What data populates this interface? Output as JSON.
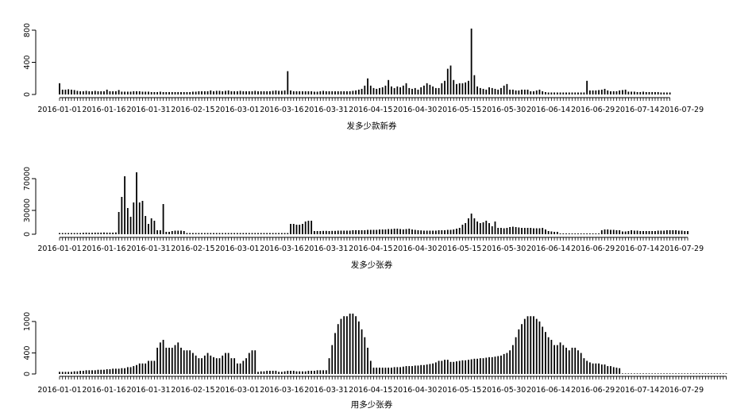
{
  "chart_data": [
    {
      "type": "bar",
      "xlabel": "发多少款新券",
      "ylabel": "",
      "ylim": [
        0,
        800
      ],
      "yticks": [
        0,
        400,
        800
      ],
      "grid": false,
      "x_tick_labels": [
        "2016-01-01",
        "2016-01-16",
        "2016-01-31",
        "2016-02-15",
        "2016-03-01",
        "2016-03-16",
        "2016-03-31",
        "2016-04-15",
        "2016-04-30",
        "2016-05-15",
        "2016-05-30",
        "2016-06-14",
        "2016-06-29",
        "2016-07-14",
        "2016-07-29"
      ],
      "x_start": "2016-01-01",
      "x_end": "2016-07-31",
      "values": [
        140,
        60,
        60,
        65,
        60,
        55,
        45,
        40,
        40,
        45,
        40,
        40,
        45,
        40,
        40,
        40,
        60,
        40,
        40,
        40,
        55,
        35,
        35,
        35,
        35,
        40,
        40,
        40,
        35,
        35,
        35,
        30,
        30,
        30,
        35,
        30,
        30,
        30,
        30,
        30,
        30,
        30,
        30,
        30,
        30,
        35,
        35,
        40,
        40,
        40,
        40,
        50,
        40,
        45,
        45,
        40,
        45,
        50,
        40,
        40,
        40,
        45,
        40,
        40,
        40,
        40,
        45,
        40,
        40,
        40,
        40,
        40,
        45,
        50,
        45,
        45,
        50,
        290,
        50,
        40,
        40,
        40,
        40,
        40,
        40,
        40,
        35,
        35,
        40,
        45,
        40,
        40,
        40,
        40,
        40,
        40,
        40,
        40,
        40,
        45,
        50,
        60,
        70,
        110,
        200,
        110,
        80,
        70,
        80,
        90,
        110,
        180,
        100,
        80,
        100,
        90,
        110,
        140,
        80,
        70,
        80,
        60,
        90,
        110,
        140,
        120,
        100,
        80,
        80,
        140,
        170,
        320,
        360,
        180,
        130,
        140,
        140,
        150,
        170,
        820,
        240,
        100,
        80,
        70,
        60,
        90,
        80,
        70,
        60,
        80,
        110,
        130,
        60,
        60,
        50,
        50,
        60,
        60,
        60,
        40,
        40,
        50,
        60,
        40,
        30,
        25,
        25,
        25,
        25,
        25,
        25,
        25,
        25,
        25,
        25,
        25,
        25,
        25,
        170,
        50,
        50,
        50,
        55,
        60,
        70,
        50,
        40,
        40,
        40,
        50,
        55,
        60,
        35,
        35,
        35,
        30,
        30,
        35,
        30,
        30,
        30,
        30,
        30,
        25,
        25,
        25,
        25
      ]
    },
    {
      "type": "bar",
      "xlabel": "发多少张券",
      "ylabel": "",
      "ylim": [
        0,
        80000
      ],
      "yticks": [
        0,
        30000,
        70000
      ],
      "grid": false,
      "x_tick_labels": [
        "2016-01-01",
        "2016-01-16",
        "2016-01-31",
        "2016-02-15",
        "2016-03-01",
        "2016-03-16",
        "2016-03-31",
        "2016-04-15",
        "2016-04-30",
        "2016-05-15",
        "2016-05-30",
        "2016-06-14",
        "2016-06-29",
        "2016-07-14",
        "2016-07-29"
      ],
      "x_start": "2016-01-01",
      "x_end": "2016-07-31",
      "values": [
        1500,
        1500,
        1500,
        1500,
        1500,
        1500,
        1500,
        1500,
        1800,
        2000,
        1800,
        1800,
        2000,
        2000,
        2000,
        2200,
        2000,
        2000,
        2000,
        2200,
        28000,
        47000,
        73000,
        33000,
        22000,
        40000,
        78000,
        40000,
        42000,
        23000,
        13000,
        20000,
        17000,
        5000,
        5000,
        38000,
        3000,
        3000,
        4000,
        4500,
        4500,
        4500,
        4000,
        1500,
        1500,
        1500,
        1500,
        1500,
        1500,
        1500,
        1500,
        1500,
        1500,
        1500,
        1500,
        1500,
        1500,
        1500,
        1500,
        1500,
        1500,
        1500,
        1500,
        1500,
        1500,
        1500,
        1500,
        1500,
        1500,
        1500,
        1500,
        1500,
        1500,
        1500,
        1500,
        1500,
        1500,
        1500,
        13000,
        13000,
        12000,
        12000,
        13000,
        16000,
        17000,
        17000,
        4000,
        4000,
        4000,
        4200,
        4200,
        4000,
        4200,
        4200,
        4500,
        4500,
        4500,
        4500,
        4500,
        5000,
        5000,
        5000,
        5000,
        5000,
        5500,
        5500,
        5500,
        5500,
        6000,
        6000,
        6000,
        6500,
        6500,
        7000,
        7000,
        6500,
        6000,
        6500,
        7000,
        6000,
        5500,
        5000,
        4800,
        4500,
        4500,
        4500,
        4500,
        4500,
        5000,
        5000,
        5000,
        5500,
        5500,
        6000,
        7000,
        8000,
        12000,
        14000,
        20000,
        26000,
        20000,
        16000,
        14000,
        15000,
        17000,
        14000,
        10000,
        16000,
        8000,
        8000,
        7500,
        8000,
        9000,
        9500,
        9000,
        8500,
        8000,
        8000,
        8000,
        8000,
        7500,
        7500,
        7500,
        8000,
        6000,
        4000,
        3500,
        3000,
        3000,
        1000,
        1000,
        1000,
        1000,
        1000,
        1000,
        1000,
        1000,
        1000,
        1000,
        1000,
        1000,
        1000,
        1000,
        5000,
        6000,
        6000,
        5500,
        5500,
        5000,
        5000,
        3500,
        3500,
        4000,
        5000,
        4500,
        4500,
        4000,
        4000,
        4000,
        4000,
        4000,
        4000,
        4500,
        4500,
        4500,
        5000,
        5000,
        5000,
        5000,
        4500,
        4500,
        4000,
        4000
      ]
    },
    {
      "type": "bar",
      "xlabel": "用多少张券",
      "ylabel": "",
      "ylim": [
        0,
        1150
      ],
      "yticks": [
        0,
        400,
        1000
      ],
      "grid": false,
      "x_tick_labels": [
        "2016-01-01",
        "2016-01-16",
        "2016-01-31",
        "2016-02-15",
        "2016-03-01",
        "2016-03-16",
        "2016-03-31",
        "2016-04-15",
        "2016-04-30",
        "2016-05-15",
        "2016-05-30",
        "2016-06-14",
        "2016-06-29",
        "2016-07-14",
        "2016-07-29"
      ],
      "x_start": "2016-01-01",
      "x_end": "2016-07-31",
      "values": [
        40,
        40,
        40,
        40,
        40,
        50,
        50,
        60,
        60,
        70,
        70,
        70,
        70,
        80,
        80,
        80,
        90,
        90,
        100,
        100,
        100,
        110,
        110,
        130,
        130,
        150,
        170,
        200,
        200,
        200,
        250,
        250,
        250,
        500,
        600,
        650,
        500,
        500,
        500,
        550,
        600,
        500,
        450,
        450,
        450,
        400,
        350,
        300,
        300,
        350,
        400,
        350,
        320,
        300,
        300,
        350,
        400,
        400,
        300,
        300,
        200,
        200,
        250,
        300,
        400,
        450,
        450,
        40,
        50,
        50,
        60,
        60,
        60,
        60,
        40,
        40,
        50,
        60,
        60,
        60,
        50,
        50,
        50,
        50,
        60,
        60,
        60,
        70,
        70,
        70,
        70,
        300,
        550,
        780,
        950,
        1050,
        1100,
        1100,
        1150,
        1150,
        1100,
        1000,
        850,
        700,
        500,
        250,
        120,
        120,
        120,
        120,
        120,
        120,
        120,
        130,
        130,
        130,
        140,
        150,
        150,
        150,
        160,
        160,
        170,
        170,
        180,
        190,
        200,
        220,
        250,
        250,
        270,
        270,
        230,
        230,
        240,
        250,
        260,
        260,
        270,
        280,
        290,
        290,
        300,
        300,
        310,
        320,
        320,
        330,
        340,
        350,
        380,
        400,
        450,
        550,
        700,
        850,
        950,
        1050,
        1100,
        1100,
        1100,
        1050,
        1000,
        900,
        800,
        700,
        650,
        550,
        550,
        600,
        550,
        500,
        450,
        500,
        500,
        450,
        400,
        300,
        250,
        220,
        200,
        200,
        200,
        180,
        180,
        150,
        150,
        130,
        120,
        110,
        10,
        10,
        10,
        10,
        10,
        10,
        10,
        10,
        10,
        10,
        10,
        10,
        10,
        10,
        10,
        10,
        10,
        10,
        10,
        10,
        10,
        10,
        10,
        10,
        10,
        10,
        10,
        10,
        10,
        10,
        10,
        10,
        10,
        10,
        10,
        10
      ]
    }
  ]
}
